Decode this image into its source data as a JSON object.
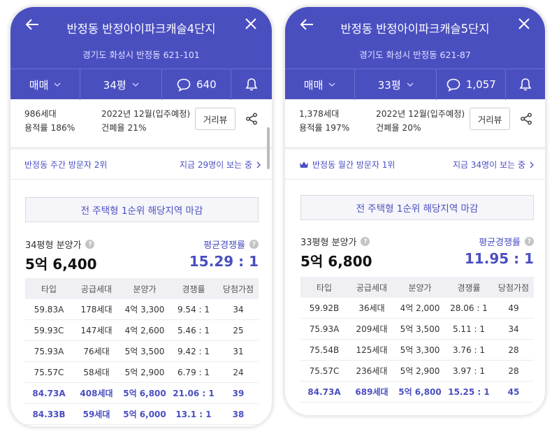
{
  "left": {
    "title": "반정동 반정아이파크캐슬4단지",
    "address": "경기도 화성시 반정동 621-101",
    "tabs": {
      "trade": "매매",
      "size": "34평",
      "comments": "640"
    },
    "info": {
      "households": "986세대",
      "far": "용적률 186%",
      "date": "2022년 12월(입주예정)",
      "bcr": "건폐율 21%"
    },
    "distance_button": "거리뷰",
    "visitor_rank": "반정동 주간 방문자 2위",
    "viewing_now": "지금 29명이 보는 중",
    "banner": "전 주택형 1순위 해당지역 마감",
    "price_label": "34평형 분양가",
    "price_value": "5억 6,400",
    "comp_label": "평균경쟁률",
    "comp_value": "15.29 : 1",
    "headers": [
      "타입",
      "공급세대",
      "분양가",
      "경쟁률",
      "당첨가점"
    ],
    "rows": [
      [
        "59.83A",
        "178세대",
        "4억 3,300",
        "9.54 : 1",
        "34"
      ],
      [
        "59.93C",
        "147세대",
        "4억 2,600",
        "5.46 : 1",
        "25"
      ],
      [
        "75.93A",
        "76세대",
        "5억 3,500",
        "9.42 : 1",
        "31"
      ],
      [
        "75.57C",
        "58세대",
        "5억 2,900",
        "6.79 : 1",
        "24"
      ],
      [
        "84.73A",
        "408세대",
        "5억 6,800",
        "21.06 : 1",
        "39"
      ],
      [
        "84.33B",
        "59세대",
        "5억 6,000",
        "13.1 : 1",
        "38"
      ]
    ]
  },
  "right": {
    "title": "반정동 반정아이파크캐슬5단지",
    "address": "경기도 화성시 반정동 621-87",
    "tabs": {
      "trade": "매매",
      "size": "33평",
      "comments": "1,057"
    },
    "info": {
      "households": "1,378세대",
      "far": "용적률 197%",
      "date": "2022년 12월(입주예정)",
      "bcr": "건폐율 20%"
    },
    "distance_button": "거리뷰",
    "visitor_rank": "반정동 월간 방문자 1위",
    "viewing_now": "지금 34명이 보는 중",
    "banner": "전 주택형 1순위 해당지역 마감",
    "price_label": "33평형 분양가",
    "price_value": "5억 6,800",
    "comp_label": "평균경쟁률",
    "comp_value": "11.95 : 1",
    "headers": [
      "타입",
      "공급세대",
      "분양가",
      "경쟁률",
      "당첨가점"
    ],
    "rows": [
      [
        "59.92B",
        "36세대",
        "4억 2,000",
        "28.06 : 1",
        "49"
      ],
      [
        "75.93A",
        "209세대",
        "5억 3,500",
        "5.11 : 1",
        "34"
      ],
      [
        "75.54B",
        "125세대",
        "5억 3,300",
        "3.76 : 1",
        "28"
      ],
      [
        "75.57C",
        "236세대",
        "5억 2,900",
        "3.97 : 1",
        "28"
      ],
      [
        "84.73A",
        "689세대",
        "5억 6,800",
        "15.25 : 1",
        "45"
      ]
    ]
  },
  "colors": {
    "brand": "#4a4fc0"
  },
  "icons": [
    "back-arrow-icon",
    "close-icon",
    "chevron-down-icon",
    "comment-bubble-icon",
    "bell-icon",
    "share-icon",
    "crown-icon",
    "chevron-right-icon",
    "question-icon"
  ]
}
